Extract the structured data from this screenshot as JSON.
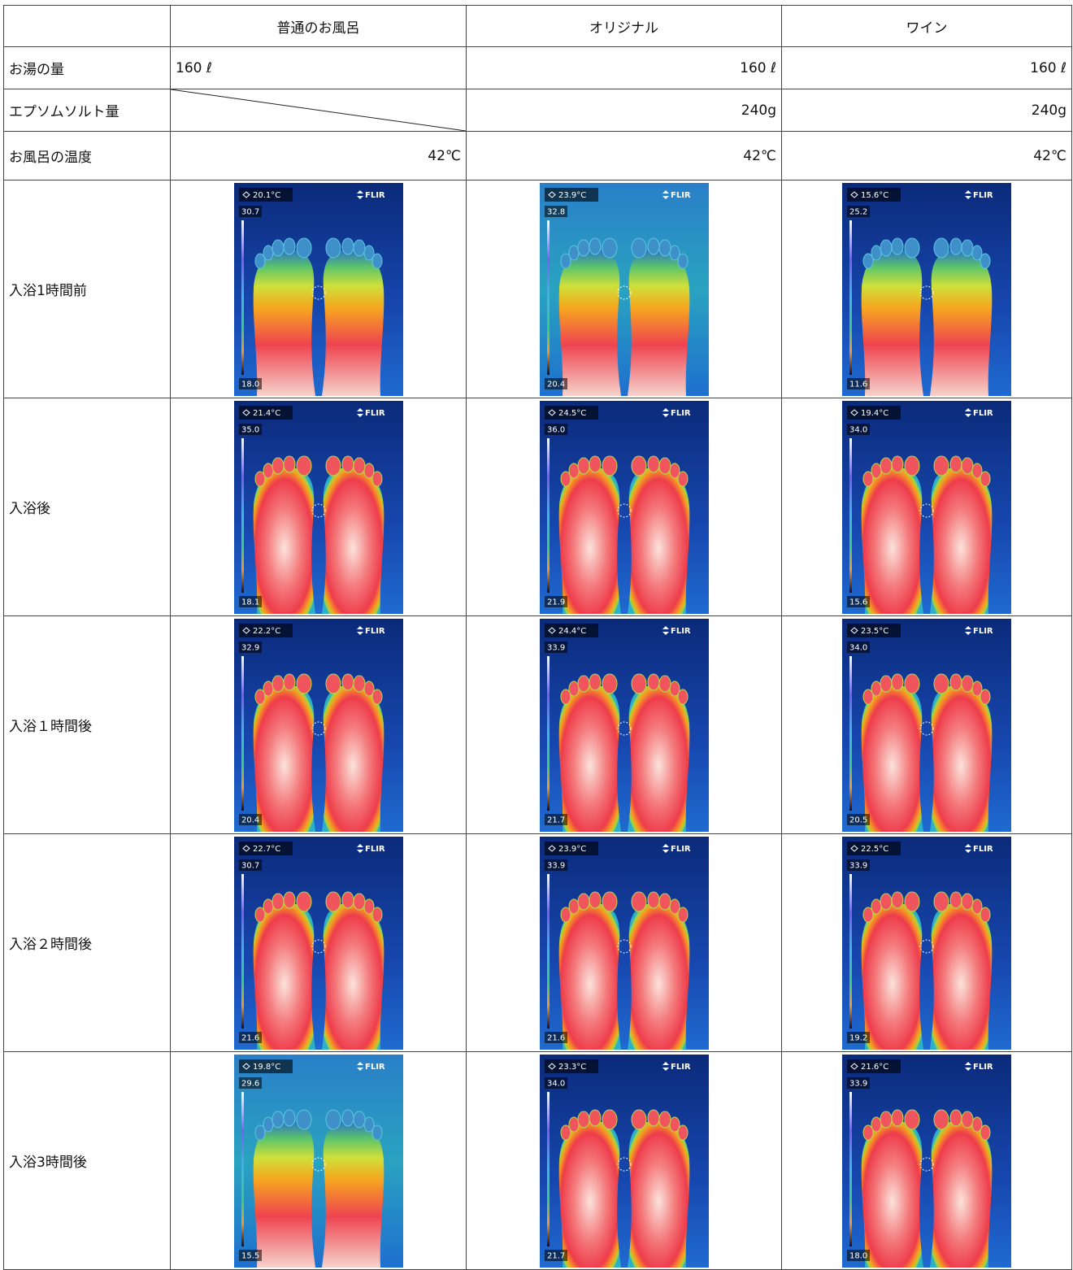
{
  "header": {
    "columns": [
      "普通のお風呂",
      "オリジナル",
      "ワイン"
    ]
  },
  "rows": [
    {
      "label": "お湯の量",
      "cells": [
        "160 ℓ",
        "160 ℓ",
        "160 ℓ"
      ]
    },
    {
      "label": "エプソムソルト量",
      "cells": [
        null,
        "240g",
        "240g"
      ]
    },
    {
      "label": "お風呂の温度",
      "cells": [
        "42℃",
        "42℃",
        "42℃"
      ]
    }
  ],
  "logo": "FLIR",
  "image_rows": [
    {
      "label": "入浴1時間前",
      "images": [
        {
          "spot": "20.1°C",
          "max": "30.7",
          "min": "18.0"
        },
        {
          "spot": "23.9°C",
          "max": "32.8",
          "min": "20.4"
        },
        {
          "spot": "15.6°C",
          "max": "25.2",
          "min": "11.6"
        }
      ]
    },
    {
      "label": "入浴後",
      "images": [
        {
          "spot": "21.4°C",
          "max": "35.0",
          "min": "18.1"
        },
        {
          "spot": "24.5°C",
          "max": "36.0",
          "min": "21.9"
        },
        {
          "spot": "19.4°C",
          "max": "34.0",
          "min": "15.6"
        }
      ]
    },
    {
      "label": "入浴１時間後",
      "images": [
        {
          "spot": "22.2°C",
          "max": "32.9",
          "min": "20.4"
        },
        {
          "spot": "24.4°C",
          "max": "33.9",
          "min": "21.7"
        },
        {
          "spot": "23.5°C",
          "max": "34.0",
          "min": "20.5"
        }
      ]
    },
    {
      "label": "入浴２時間後",
      "images": [
        {
          "spot": "22.7°C",
          "max": "30.7",
          "min": "21.6"
        },
        {
          "spot": "23.9°C",
          "max": "33.9",
          "min": "21.6"
        },
        {
          "spot": "22.5°C",
          "max": "33.9",
          "min": "19.2"
        }
      ]
    },
    {
      "label": "入浴3時間後",
      "images": [
        {
          "spot": "19.8°C",
          "max": "29.6",
          "min": "15.5"
        },
        {
          "spot": "23.3°C",
          "max": "34.0",
          "min": "21.7"
        },
        {
          "spot": "21.6°C",
          "max": "33.9",
          "min": "18.0"
        }
      ]
    }
  ]
}
